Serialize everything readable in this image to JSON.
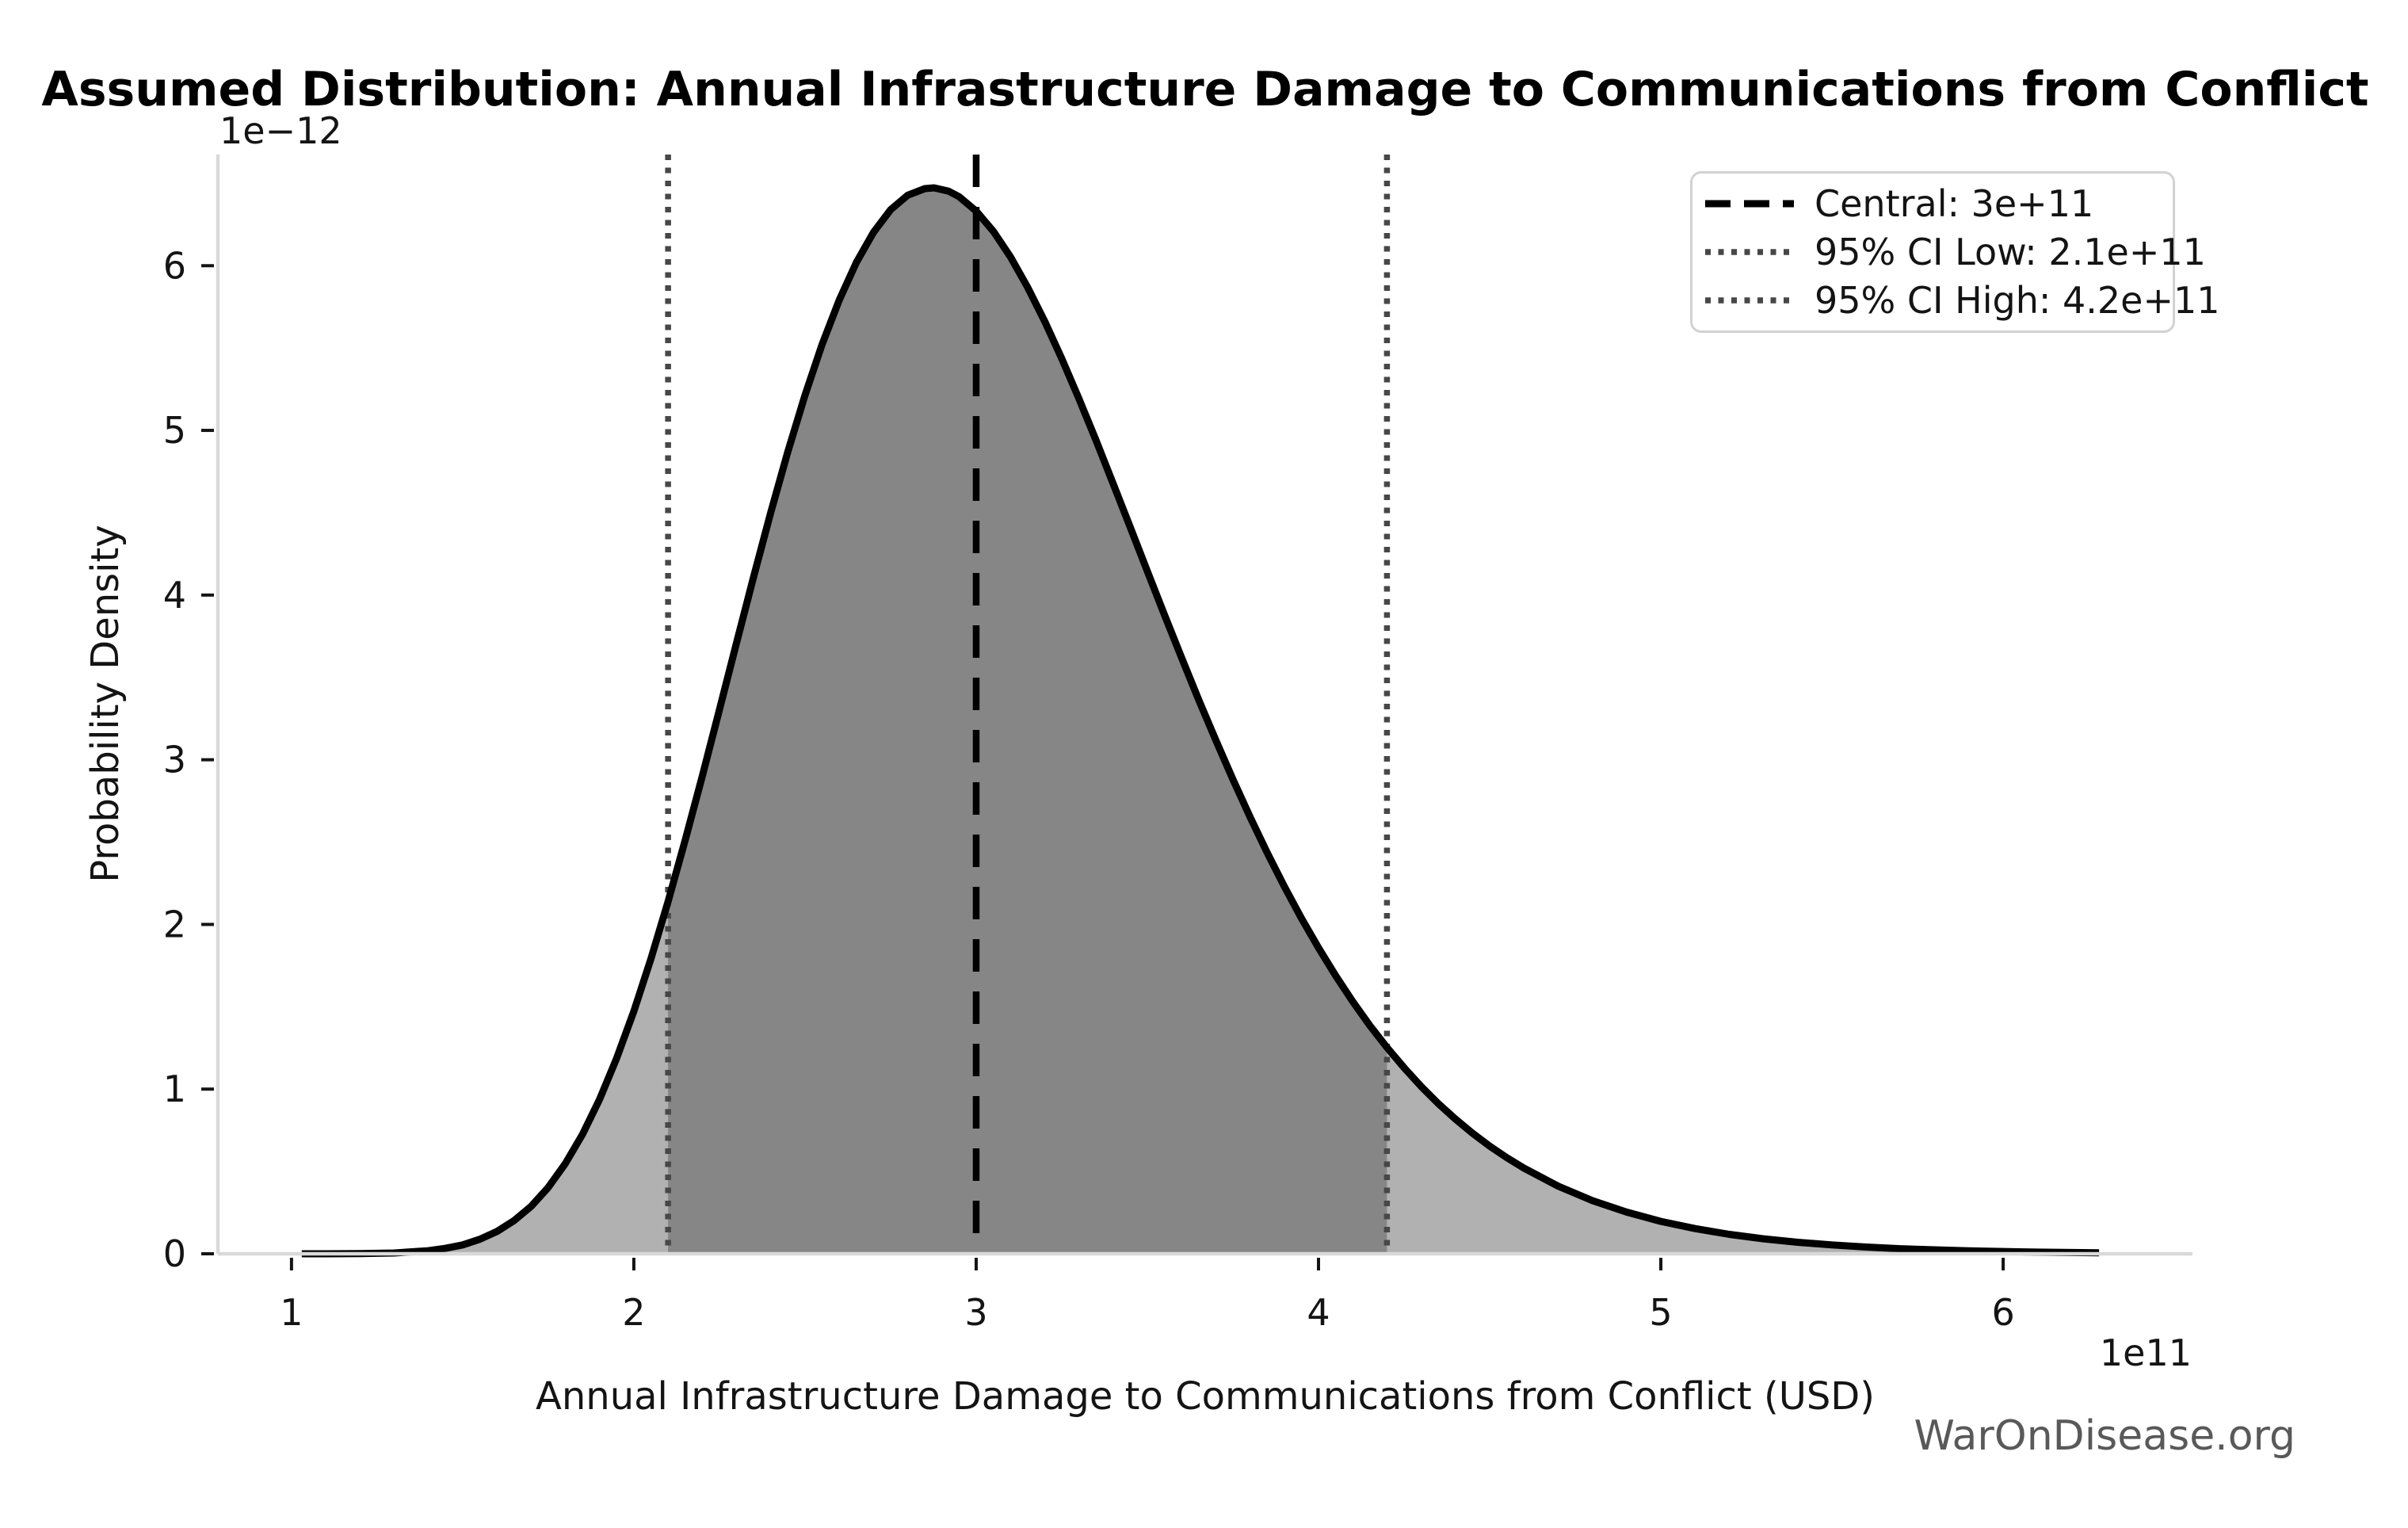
{
  "title": "Assumed Distribution: Annual Infrastructure Damage to Communications from Conflict",
  "watermark": "WarOnDisease.org",
  "legend": {
    "central_label": "Central: 3e+11",
    "ci_low_label": "95% CI Low: 2.1e+11",
    "ci_high_label": "95% CI High: 4.2e+11"
  },
  "chart_data": {
    "type": "area",
    "title": "Assumed Distribution: Annual Infrastructure Damage to Communications from Conflict",
    "xlabel": "Annual Infrastructure Damage to Communications from Conflict (USD)",
    "ylabel": "Probability Density",
    "x_offset_label": "1e11",
    "y_offset_label": "1e−12",
    "x_tick_values": [
      1,
      2,
      3,
      4,
      5,
      6
    ],
    "x_tick_labels": [
      "1",
      "2",
      "3",
      "4",
      "5",
      "6"
    ],
    "y_tick_values": [
      0,
      1,
      2,
      3,
      4,
      5,
      6
    ],
    "y_tick_labels": [
      "0",
      "1",
      "2",
      "3",
      "4",
      "5",
      "6"
    ],
    "xlim": [
      0.785,
      6.553
    ],
    "ylim": [
      0,
      6.675
    ],
    "x_units": "1e11 USD",
    "y_units": "1e-12 probability density",
    "grid": false,
    "legend_position": "upper right",
    "central": {
      "value": 3.0,
      "label": "Central: 3e+11",
      "style": "dashed"
    },
    "ci_low": {
      "value": 2.1,
      "label": "95% CI Low: 2.1e+11",
      "style": "dotted"
    },
    "ci_high": {
      "value": 4.2,
      "label": "95% CI High: 4.2e+11",
      "style": "dotted"
    },
    "distribution": {
      "family": "lognormal",
      "median_1e11": 3.0,
      "sigma_log": 0.21
    },
    "curve": {
      "x": [
        1.03,
        1.1,
        1.2,
        1.3,
        1.4,
        1.45,
        1.5,
        1.55,
        1.6,
        1.65,
        1.7,
        1.75,
        1.8,
        1.85,
        1.9,
        1.95,
        2.0,
        2.05,
        2.1,
        2.15,
        2.2,
        2.25,
        2.3,
        2.35,
        2.4,
        2.45,
        2.5,
        2.55,
        2.6,
        2.65,
        2.7,
        2.75,
        2.8,
        2.85,
        2.877,
        2.92,
        2.95,
        3.0,
        3.05,
        3.1,
        3.15,
        3.2,
        3.25,
        3.3,
        3.35,
        3.4,
        3.45,
        3.5,
        3.55,
        3.6,
        3.65,
        3.7,
        3.75,
        3.8,
        3.85,
        3.9,
        3.95,
        4.0,
        4.05,
        4.1,
        4.15,
        4.2,
        4.25,
        4.3,
        4.35,
        4.4,
        4.45,
        4.5,
        4.55,
        4.6,
        4.7,
        4.8,
        4.9,
        5.0,
        5.1,
        5.2,
        5.3,
        5.4,
        5.5,
        5.6,
        5.7,
        5.8,
        5.9,
        6.0,
        6.1,
        6.28
      ],
      "density": [
        0.0,
        0.0002,
        0.0012,
        0.005,
        0.019,
        0.033,
        0.054,
        0.088,
        0.135,
        0.201,
        0.288,
        0.403,
        0.548,
        0.725,
        0.938,
        1.188,
        1.472,
        1.791,
        2.138,
        2.511,
        2.9,
        3.303,
        3.709,
        4.111,
        4.501,
        4.871,
        5.213,
        5.522,
        5.792,
        6.02,
        6.203,
        6.34,
        6.428,
        6.468,
        6.473,
        6.452,
        6.419,
        6.332,
        6.209,
        6.054,
        5.87,
        5.663,
        5.436,
        5.193,
        4.94,
        4.677,
        4.412,
        4.145,
        3.88,
        3.62,
        3.364,
        3.119,
        2.881,
        2.653,
        2.436,
        2.231,
        2.038,
        1.858,
        1.689,
        1.532,
        1.386,
        1.253,
        1.13,
        1.016,
        0.912,
        0.818,
        0.732,
        0.654,
        0.584,
        0.52,
        0.411,
        0.323,
        0.253,
        0.197,
        0.153,
        0.118,
        0.091,
        0.07,
        0.054,
        0.041,
        0.031,
        0.024,
        0.018,
        0.014,
        0.01,
        0.006
      ]
    },
    "colors": {
      "curve": "#000000",
      "fill_light": "#b1b1b1",
      "fill_dark": "#868686",
      "central_line": "#000000",
      "ci_line": "#474747",
      "spine": "#d9d9d9",
      "tick": "#141414",
      "text": "#141414",
      "watermark": "#595959",
      "legend_border": "#d2d2d2"
    }
  }
}
